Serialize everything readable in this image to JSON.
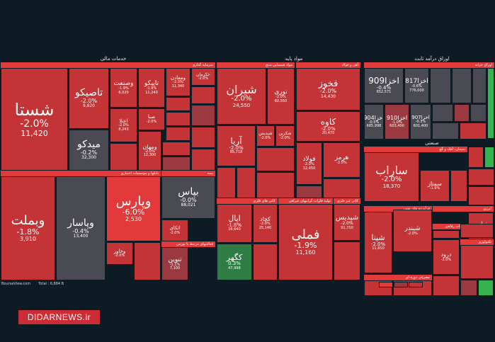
{
  "colors": {
    "background": "#0d1b25",
    "neg_strong": "#e23a3a",
    "neg_mid": "#c43436",
    "neg_light": "#9a3a40",
    "neutral": "#4a4a52",
    "pos_light": "#2f7d45",
    "pos_strong": "#36b24f"
  },
  "footer": {
    "source": "BourseView.com",
    "total": "Total : 6,884 B"
  },
  "watermark": "DIDARNEWS.ir",
  "chart_data": {
    "type": "treemap",
    "sections": [
      {
        "title": "خدمات مالی",
        "subtitle": "سرمایه گذاری"
      },
      {
        "title": "",
        "subtitle": "بانکها و موسسات اعتباری"
      },
      {
        "title": "",
        "subtitle": "بیمه"
      },
      {
        "title": "",
        "subtitle": "فعالیتهای مرتبط با بورس"
      },
      {
        "title": "مواد پایه",
        "subtitle": "مواد شیمیایی منتج"
      },
      {
        "title": "",
        "subtitle": "آهن و فولاد"
      },
      {
        "title": "",
        "subtitle": "کانی های فلزی"
      },
      {
        "title": "",
        "subtitle": "تولید فلزات گرانبهای غیراهن"
      },
      {
        "title": "",
        "subtitle": "کانی غیر فلزی"
      },
      {
        "title": "",
        "subtitle": "سیمان"
      },
      {
        "title": "اوراق درآمد ثابت",
        "subtitle": "اوراق خزانه"
      },
      {
        "title": "صنعتی",
        "subtitle": "سیمان، آهک و گچ"
      },
      {
        "title": "",
        "subtitle": "فرآورده های نفتی"
      },
      {
        "title": "",
        "subtitle": "انرژی"
      },
      {
        "title": "",
        "subtitle": "خدمات رفاهی"
      },
      {
        "title": "",
        "subtitle": "مصرفی دوره ای"
      },
      {
        "title": "",
        "subtitle": "تکنولوژی"
      }
    ],
    "tiles": [
      {
        "name": "شستا",
        "change": "-2.0%",
        "price": "11,420"
      },
      {
        "name": "تاصیکو",
        "change": "-2.0%",
        "price": "9,820"
      },
      {
        "name": "وصنعت",
        "change": "-1.9%",
        "price": "6,020"
      },
      {
        "name": "تاپیکو",
        "change": "-1.9%",
        "price": "11,240"
      },
      {
        "name": "ومعادن",
        "change": "-2.0%",
        "price": "11,340"
      },
      {
        "name": "خکرمان",
        "change": "-2.0%",
        "price": ""
      },
      {
        "name": "میدکو",
        "change": "-0.2%",
        "price": "32,300"
      },
      {
        "name": "اعتلا",
        "change": "-2.0%",
        "price": "8,243"
      },
      {
        "name": "ومهان",
        "change": "-2.0%",
        "price": "12,300"
      },
      {
        "name": "صبا",
        "change": "-2.0%",
        "price": ""
      },
      {
        "name": "وبملت",
        "change": "-1.8%",
        "price": "3,910"
      },
      {
        "name": "وپاسار",
        "change": "-0.4%",
        "price": "13,400"
      },
      {
        "name": "وپارس",
        "change": "-6.0%",
        "price": "2,530"
      },
      {
        "name": "بپاس",
        "change": "-0.0%",
        "price": "88,021"
      },
      {
        "name": "اتکای",
        "change": "-2.0%",
        "price": ""
      },
      {
        "name": "وخاور",
        "change": "-2.0%",
        "price": ""
      },
      {
        "name": "تنوین",
        "change": "-1.1%",
        "price": "7,100"
      },
      {
        "name": "شیران",
        "change": "-2.0%",
        "price": "24,550"
      },
      {
        "name": "نوری",
        "change": "-2.0%",
        "price": "60,550"
      },
      {
        "name": "فخوز",
        "change": "-2.0%",
        "price": "14,430"
      },
      {
        "name": "کاوه",
        "change": "-2.0%",
        "price": "20,470"
      },
      {
        "name": "آریا",
        "change": "-2.0%",
        "price": "85,718"
      },
      {
        "name": "شپدیس",
        "change": "-2.0%",
        "price": ""
      },
      {
        "name": "شکربن",
        "change": "-2.0%",
        "price": ""
      },
      {
        "name": "هرمز",
        "change": "-2.0%",
        "price": ""
      },
      {
        "name": "فولاد",
        "change": "-2.0%",
        "price": "12,450"
      },
      {
        "name": "اپال",
        "change": "-1.8%",
        "price": "16,640"
      },
      {
        "name": "کچاد",
        "change": "-2.0%",
        "price": "25,140"
      },
      {
        "name": "کگهر",
        "change": "0.3%",
        "price": "47,998"
      },
      {
        "name": "فملی",
        "change": "-1.9%",
        "price": "11,160"
      },
      {
        "name": "شپدیس",
        "change": "-2.0%",
        "price": "91,750"
      },
      {
        "name": "شبندر",
        "change": "-2.0%",
        "price": ""
      },
      {
        "name": "اخزا909",
        "change": "-0.4%",
        "price": "652,571"
      },
      {
        "name": "اخزا817",
        "change": "-0.6%",
        "price": "776,000"
      },
      {
        "name": "اخزا904",
        "change": "-0.5%",
        "price": "685,998"
      },
      {
        "name": "اخزا910",
        "change": "-1.0%",
        "price": "603,400"
      },
      {
        "name": "اخزا907",
        "change": "-0.3%",
        "price": "601,400"
      },
      {
        "name": "ساراب",
        "change": "-2.0%",
        "price": "18,370"
      },
      {
        "name": "سمتاز",
        "change": "-1.9%",
        "price": ""
      },
      {
        "name": "شپنا",
        "change": "-2.0%",
        "price": "11,850"
      },
      {
        "name": "تیپاسر",
        "change": "-2.0%",
        "price": ""
      },
      {
        "name": "درود",
        "change": "-2.0%",
        "price": ""
      }
    ]
  }
}
